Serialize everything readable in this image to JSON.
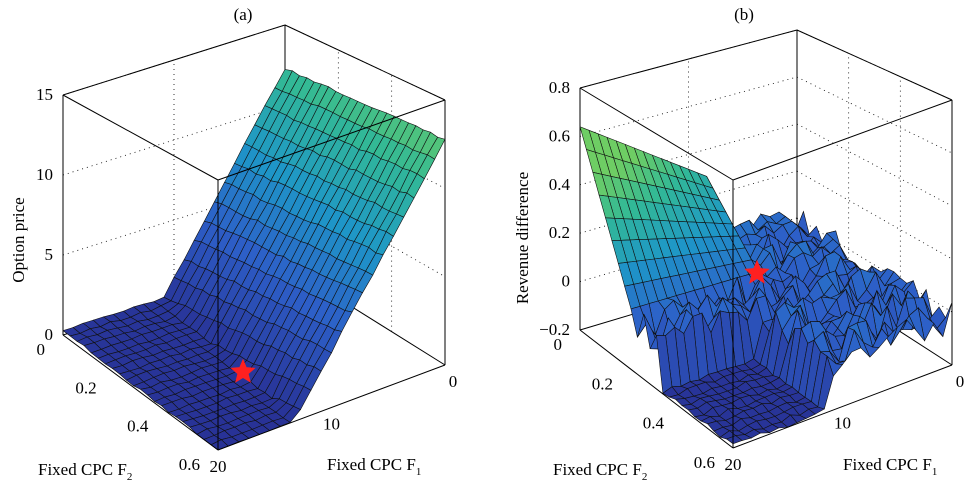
{
  "chart_data": [
    {
      "type": "surface",
      "title": "(a)",
      "xlabel": "Fixed CPC F",
      "xlabel_sub": "1",
      "ylabel": "Fixed CPC F",
      "ylabel_sub": "2",
      "zlabel": "Option price",
      "x_range": [
        0,
        20
      ],
      "y_range": [
        0,
        0.6
      ],
      "z_range": [
        0,
        15
      ],
      "x_ticks": [
        "0",
        "10",
        "20"
      ],
      "y_ticks": [
        "0",
        "0.2",
        "0.4",
        "0.6"
      ],
      "z_ticks": [
        "0",
        "5",
        "10",
        "15"
      ],
      "grid": true,
      "marker": {
        "shape": "star",
        "color": "#ff2020",
        "x": 20,
        "y": 0.5
      },
      "surface_description_values": {
        "z_at_F1_0_F2_0": 12.0,
        "z_at_F1_0_F2_0_6": 13.5,
        "z_at_F1_20_F2_0": 0.3,
        "z_at_F1_20_F2_0_6": 0.0
      }
    },
    {
      "type": "surface",
      "title": "(b)",
      "xlabel": "Fixed CPC F",
      "xlabel_sub": "1",
      "ylabel": "Fixed CPC F",
      "ylabel_sub": "2",
      "zlabel": "Revenue difference",
      "x_range": [
        0,
        20
      ],
      "y_range": [
        0,
        0.6
      ],
      "z_range": [
        -0.2,
        0.8
      ],
      "x_ticks": [
        "0",
        "10",
        "20"
      ],
      "y_ticks": [
        "0",
        "0.2",
        "0.4",
        "0.6"
      ],
      "z_ticks": [
        "−0.2",
        "0",
        "0.2",
        "0.4",
        "0.6",
        "0.8"
      ],
      "grid": true,
      "marker": {
        "shape": "star",
        "color": "#ff2020",
        "x": 20,
        "y": 0.5
      },
      "surface_description_values": {
        "z_at_F1_20_F2_0": 0.6,
        "z_at_F1_0_F2_0": 0.05,
        "z_at_F1_20_F2_0_6": -0.2
      }
    }
  ]
}
